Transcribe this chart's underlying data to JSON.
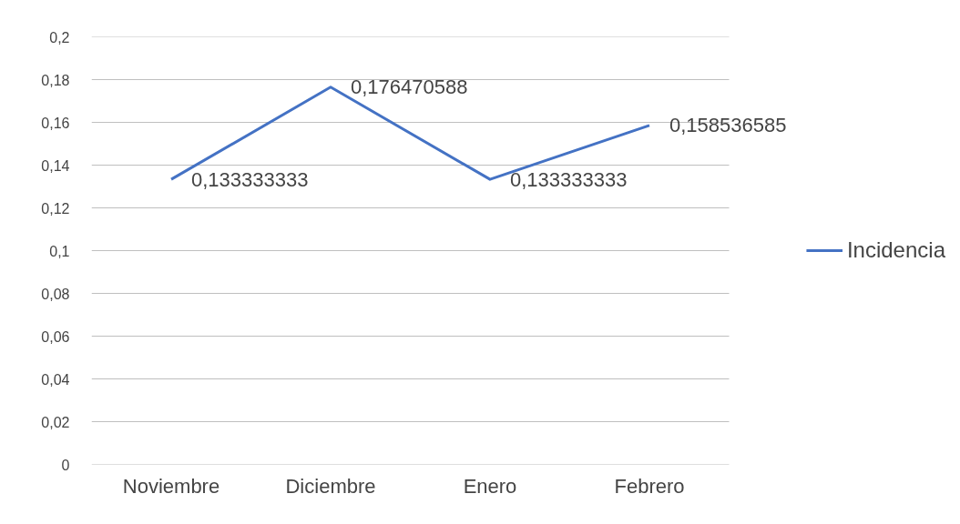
{
  "chart_data": {
    "type": "line",
    "categories": [
      "Noviembre",
      "Diciembre",
      "Enero",
      "Febrero"
    ],
    "series": [
      {
        "name": "Incidencia",
        "color": "#4472c4",
        "values": [
          0.133333333,
          0.176470588,
          0.133333333,
          0.158536585
        ],
        "value_labels": [
          "0,133333333",
          "0,176470588",
          "0,133333333",
          "0,158536585"
        ]
      }
    ],
    "ylim": [
      0,
      0.2
    ],
    "yticks": [
      {
        "value": 0,
        "label": "0"
      },
      {
        "value": 0.02,
        "label": "0,02"
      },
      {
        "value": 0.04,
        "label": "0,04"
      },
      {
        "value": 0.06,
        "label": "0,06"
      },
      {
        "value": 0.08,
        "label": "0,08"
      },
      {
        "value": 0.1,
        "label": "0,1"
      },
      {
        "value": 0.12,
        "label": "0,12"
      },
      {
        "value": 0.14,
        "label": "0,14"
      },
      {
        "value": 0.16,
        "label": "0,16"
      },
      {
        "value": 0.18,
        "label": "0,18"
      },
      {
        "value": 0.2,
        "label": "0,2"
      }
    ],
    "grid": "y",
    "legend": "right",
    "marker": "none",
    "line_style": "solid"
  }
}
